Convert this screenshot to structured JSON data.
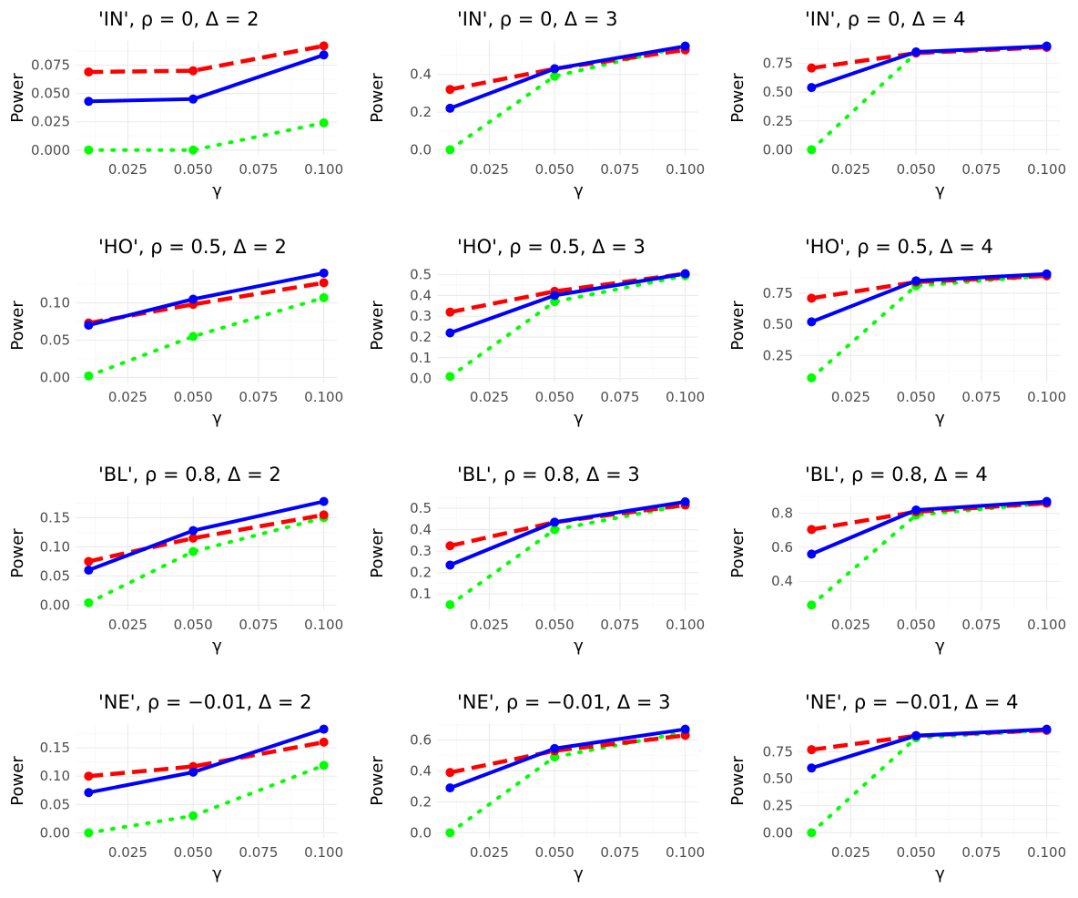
{
  "chart_data": [
    {
      "type": "line",
      "title": "'IN', ρ = 0, Δ = 2",
      "xlabel": "γ",
      "ylabel": "Power",
      "x": [
        0.01,
        0.05,
        0.1
      ],
      "xlim": [
        0.005,
        0.105
      ],
      "ylim": [
        -0.0042,
        0.0963
      ],
      "xticks": [
        "0.025",
        "0.050",
        "0.075",
        "0.100"
      ],
      "yticks": [
        "0.000",
        "0.025",
        "0.050",
        "0.075"
      ],
      "series": [
        {
          "color": "#ff0000",
          "dash": "dashed",
          "values": [
            0.069,
            0.07,
            0.092
          ]
        },
        {
          "color": "#0000ff",
          "dash": "solid",
          "values": [
            0.043,
            0.045,
            0.084
          ]
        },
        {
          "color": "#00ff00",
          "dash": "dotted",
          "values": [
            0.0,
            0.0,
            0.024
          ]
        }
      ]
    },
    {
      "type": "line",
      "title": "'IN', ρ = 0, Δ = 3",
      "xlabel": "γ",
      "ylabel": "Power",
      "x": [
        0.01,
        0.05,
        0.1
      ],
      "xlim": [
        0.005,
        0.105
      ],
      "ylim": [
        -0.0275,
        0.5775
      ],
      "xticks": [
        "0.025",
        "0.050",
        "0.075",
        "0.100"
      ],
      "yticks": [
        "0.0",
        "0.2",
        "0.4"
      ],
      "series": [
        {
          "color": "#ff0000",
          "dash": "dashed",
          "values": [
            0.32,
            0.43,
            0.53
          ]
        },
        {
          "color": "#0000ff",
          "dash": "solid",
          "values": [
            0.22,
            0.43,
            0.55
          ]
        },
        {
          "color": "#00ff00",
          "dash": "dotted",
          "values": [
            0.0,
            0.39,
            0.55
          ]
        }
      ]
    },
    {
      "type": "line",
      "title": "'IN', ρ = 0, Δ = 4",
      "xlabel": "γ",
      "ylabel": "Power",
      "x": [
        0.01,
        0.05,
        0.1
      ],
      "xlim": [
        0.005,
        0.105
      ],
      "ylim": [
        -0.045,
        0.945
      ],
      "xticks": [
        "0.025",
        "0.050",
        "0.075",
        "0.100"
      ],
      "yticks": [
        "0.00",
        "0.25",
        "0.50",
        "0.75"
      ],
      "series": [
        {
          "color": "#ff0000",
          "dash": "dashed",
          "values": [
            0.71,
            0.84,
            0.89
          ]
        },
        {
          "color": "#0000ff",
          "dash": "solid",
          "values": [
            0.54,
            0.85,
            0.9
          ]
        },
        {
          "color": "#00ff00",
          "dash": "dotted",
          "values": [
            0.0,
            0.84,
            0.9
          ]
        }
      ]
    },
    {
      "type": "line",
      "title": "'HO', ρ = 0.5, Δ = 2",
      "xlabel": "γ",
      "ylabel": "Power",
      "x": [
        0.01,
        0.05,
        0.1
      ],
      "xlim": [
        0.005,
        0.105
      ],
      "ylim": [
        -0.0068,
        0.1459
      ],
      "xticks": [
        "0.025",
        "0.050",
        "0.075",
        "0.100"
      ],
      "yticks": [
        "0.00",
        "0.05",
        "0.10"
      ],
      "series": [
        {
          "color": "#ff0000",
          "dash": "dashed",
          "values": [
            0.073,
            0.098,
            0.127
          ]
        },
        {
          "color": "#0000ff",
          "dash": "solid",
          "values": [
            0.07,
            0.105,
            0.14
          ]
        },
        {
          "color": "#00ff00",
          "dash": "dotted",
          "values": [
            0.002,
            0.055,
            0.107
          ]
        }
      ]
    },
    {
      "type": "line",
      "title": "'HO', ρ = 0.5, Δ = 3",
      "xlabel": "γ",
      "ylabel": "Power",
      "x": [
        0.01,
        0.05,
        0.1
      ],
      "xlim": [
        0.005,
        0.105
      ],
      "ylim": [
        -0.019,
        0.529
      ],
      "xticks": [
        "0.025",
        "0.050",
        "0.075",
        "0.100"
      ],
      "yticks": [
        "0.0",
        "0.1",
        "0.2",
        "0.3",
        "0.4",
        "0.5"
      ],
      "series": [
        {
          "color": "#ff0000",
          "dash": "dashed",
          "values": [
            0.32,
            0.42,
            0.505
          ]
        },
        {
          "color": "#0000ff",
          "dash": "solid",
          "values": [
            0.22,
            0.4,
            0.505
          ]
        },
        {
          "color": "#00ff00",
          "dash": "dotted",
          "values": [
            0.01,
            0.37,
            0.495
          ]
        }
      ]
    },
    {
      "type": "line",
      "title": "'HO', ρ = 0.5, Δ = 4",
      "xlabel": "γ",
      "ylabel": "Power",
      "x": [
        0.01,
        0.05,
        0.1
      ],
      "xlim": [
        0.005,
        0.105
      ],
      "ylim": [
        0.0325,
        0.9475
      ],
      "xticks": [
        "0.025",
        "0.050",
        "0.075",
        "0.100"
      ],
      "yticks": [
        "0.25",
        "0.50",
        "0.75"
      ],
      "series": [
        {
          "color": "#ff0000",
          "dash": "dashed",
          "values": [
            0.71,
            0.84,
            0.89
          ]
        },
        {
          "color": "#0000ff",
          "dash": "solid",
          "values": [
            0.52,
            0.85,
            0.905
          ]
        },
        {
          "color": "#00ff00",
          "dash": "dotted",
          "values": [
            0.07,
            0.81,
            0.89
          ]
        }
      ]
    },
    {
      "type": "line",
      "title": "'BL', ρ = 0.8, Δ = 2",
      "xlabel": "γ",
      "ylabel": "Power",
      "x": [
        0.01,
        0.05,
        0.1
      ],
      "xlim": [
        0.005,
        0.105
      ],
      "ylim": [
        -0.0088,
        0.1868
      ],
      "xticks": [
        "0.025",
        "0.050",
        "0.075",
        "0.100"
      ],
      "yticks": [
        "0.00",
        "0.05",
        "0.10",
        "0.15"
      ],
      "series": [
        {
          "color": "#ff0000",
          "dash": "dashed",
          "values": [
            0.075,
            0.115,
            0.155
          ]
        },
        {
          "color": "#0000ff",
          "dash": "solid",
          "values": [
            0.06,
            0.128,
            0.178
          ]
        },
        {
          "color": "#00ff00",
          "dash": "dotted",
          "values": [
            0.004,
            0.092,
            0.15
          ]
        }
      ]
    },
    {
      "type": "line",
      "title": "'BL', ρ = 0.8, Δ = 3",
      "xlabel": "γ",
      "ylabel": "Power",
      "x": [
        0.01,
        0.05,
        0.1
      ],
      "xlim": [
        0.005,
        0.105
      ],
      "ylim": [
        0.0245,
        0.5555
      ],
      "xticks": [
        "0.025",
        "0.050",
        "0.075",
        "0.100"
      ],
      "yticks": [
        "0.1",
        "0.2",
        "0.3",
        "0.4",
        "0.5"
      ],
      "series": [
        {
          "color": "#ff0000",
          "dash": "dashed",
          "values": [
            0.325,
            0.435,
            0.515
          ]
        },
        {
          "color": "#0000ff",
          "dash": "solid",
          "values": [
            0.235,
            0.435,
            0.53
          ]
        },
        {
          "color": "#00ff00",
          "dash": "dotted",
          "values": [
            0.05,
            0.4,
            0.515
          ]
        }
      ]
    },
    {
      "type": "line",
      "title": "'BL', ρ = 0.8, Δ = 4",
      "xlabel": "γ",
      "ylabel": "Power",
      "x": [
        0.01,
        0.05,
        0.1
      ],
      "xlim": [
        0.005,
        0.105
      ],
      "ylim": [
        0.2295,
        0.9005
      ],
      "xticks": [
        "0.025",
        "0.050",
        "0.075",
        "0.100"
      ],
      "yticks": [
        "0.4",
        "0.6",
        "0.8"
      ],
      "series": [
        {
          "color": "#ff0000",
          "dash": "dashed",
          "values": [
            0.705,
            0.81,
            0.86
          ]
        },
        {
          "color": "#0000ff",
          "dash": "solid",
          "values": [
            0.56,
            0.82,
            0.87
          ]
        },
        {
          "color": "#00ff00",
          "dash": "dotted",
          "values": [
            0.26,
            0.79,
            0.86
          ]
        }
      ]
    },
    {
      "type": "line",
      "title": "'NE', ρ = −0.01, Δ = 2",
      "xlabel": "γ",
      "ylabel": "Power",
      "x": [
        0.01,
        0.05,
        0.1
      ],
      "xlim": [
        0.005,
        0.105
      ],
      "ylim": [
        -0.009,
        0.192
      ],
      "xticks": [
        "0.025",
        "0.050",
        "0.075",
        "0.100"
      ],
      "yticks": [
        "0.00",
        "0.05",
        "0.10",
        "0.15"
      ],
      "series": [
        {
          "color": "#ff0000",
          "dash": "dashed",
          "values": [
            0.1,
            0.117,
            0.16
          ]
        },
        {
          "color": "#0000ff",
          "dash": "solid",
          "values": [
            0.071,
            0.107,
            0.183
          ]
        },
        {
          "color": "#00ff00",
          "dash": "dotted",
          "values": [
            0.0,
            0.03,
            0.119
          ]
        }
      ]
    },
    {
      "type": "line",
      "title": "'NE', ρ = −0.01, Δ = 3",
      "xlabel": "γ",
      "ylabel": "Power",
      "x": [
        0.01,
        0.05,
        0.1
      ],
      "xlim": [
        0.005,
        0.105
      ],
      "ylim": [
        -0.0335,
        0.7035
      ],
      "xticks": [
        "0.025",
        "0.050",
        "0.075",
        "0.100"
      ],
      "yticks": [
        "0.0",
        "0.2",
        "0.4",
        "0.6"
      ],
      "series": [
        {
          "color": "#ff0000",
          "dash": "dashed",
          "values": [
            0.39,
            0.53,
            0.63
          ]
        },
        {
          "color": "#0000ff",
          "dash": "solid",
          "values": [
            0.29,
            0.545,
            0.67
          ]
        },
        {
          "color": "#00ff00",
          "dash": "dotted",
          "values": [
            0.0,
            0.49,
            0.65
          ]
        }
      ]
    },
    {
      "type": "line",
      "title": "'NE', ρ = −0.01, Δ = 4",
      "xlabel": "γ",
      "ylabel": "Power",
      "x": [
        0.01,
        0.05,
        0.1
      ],
      "xlim": [
        0.005,
        0.105
      ],
      "ylim": [
        -0.048,
        1.008
      ],
      "xticks": [
        "0.025",
        "0.050",
        "0.075",
        "0.100"
      ],
      "yticks": [
        "0.00",
        "0.25",
        "0.50",
        "0.75"
      ],
      "series": [
        {
          "color": "#ff0000",
          "dash": "dashed",
          "values": [
            0.77,
            0.9,
            0.95
          ]
        },
        {
          "color": "#0000ff",
          "dash": "solid",
          "values": [
            0.6,
            0.9,
            0.96
          ]
        },
        {
          "color": "#00ff00",
          "dash": "dotted",
          "values": [
            0.0,
            0.88,
            0.95
          ]
        }
      ]
    }
  ]
}
